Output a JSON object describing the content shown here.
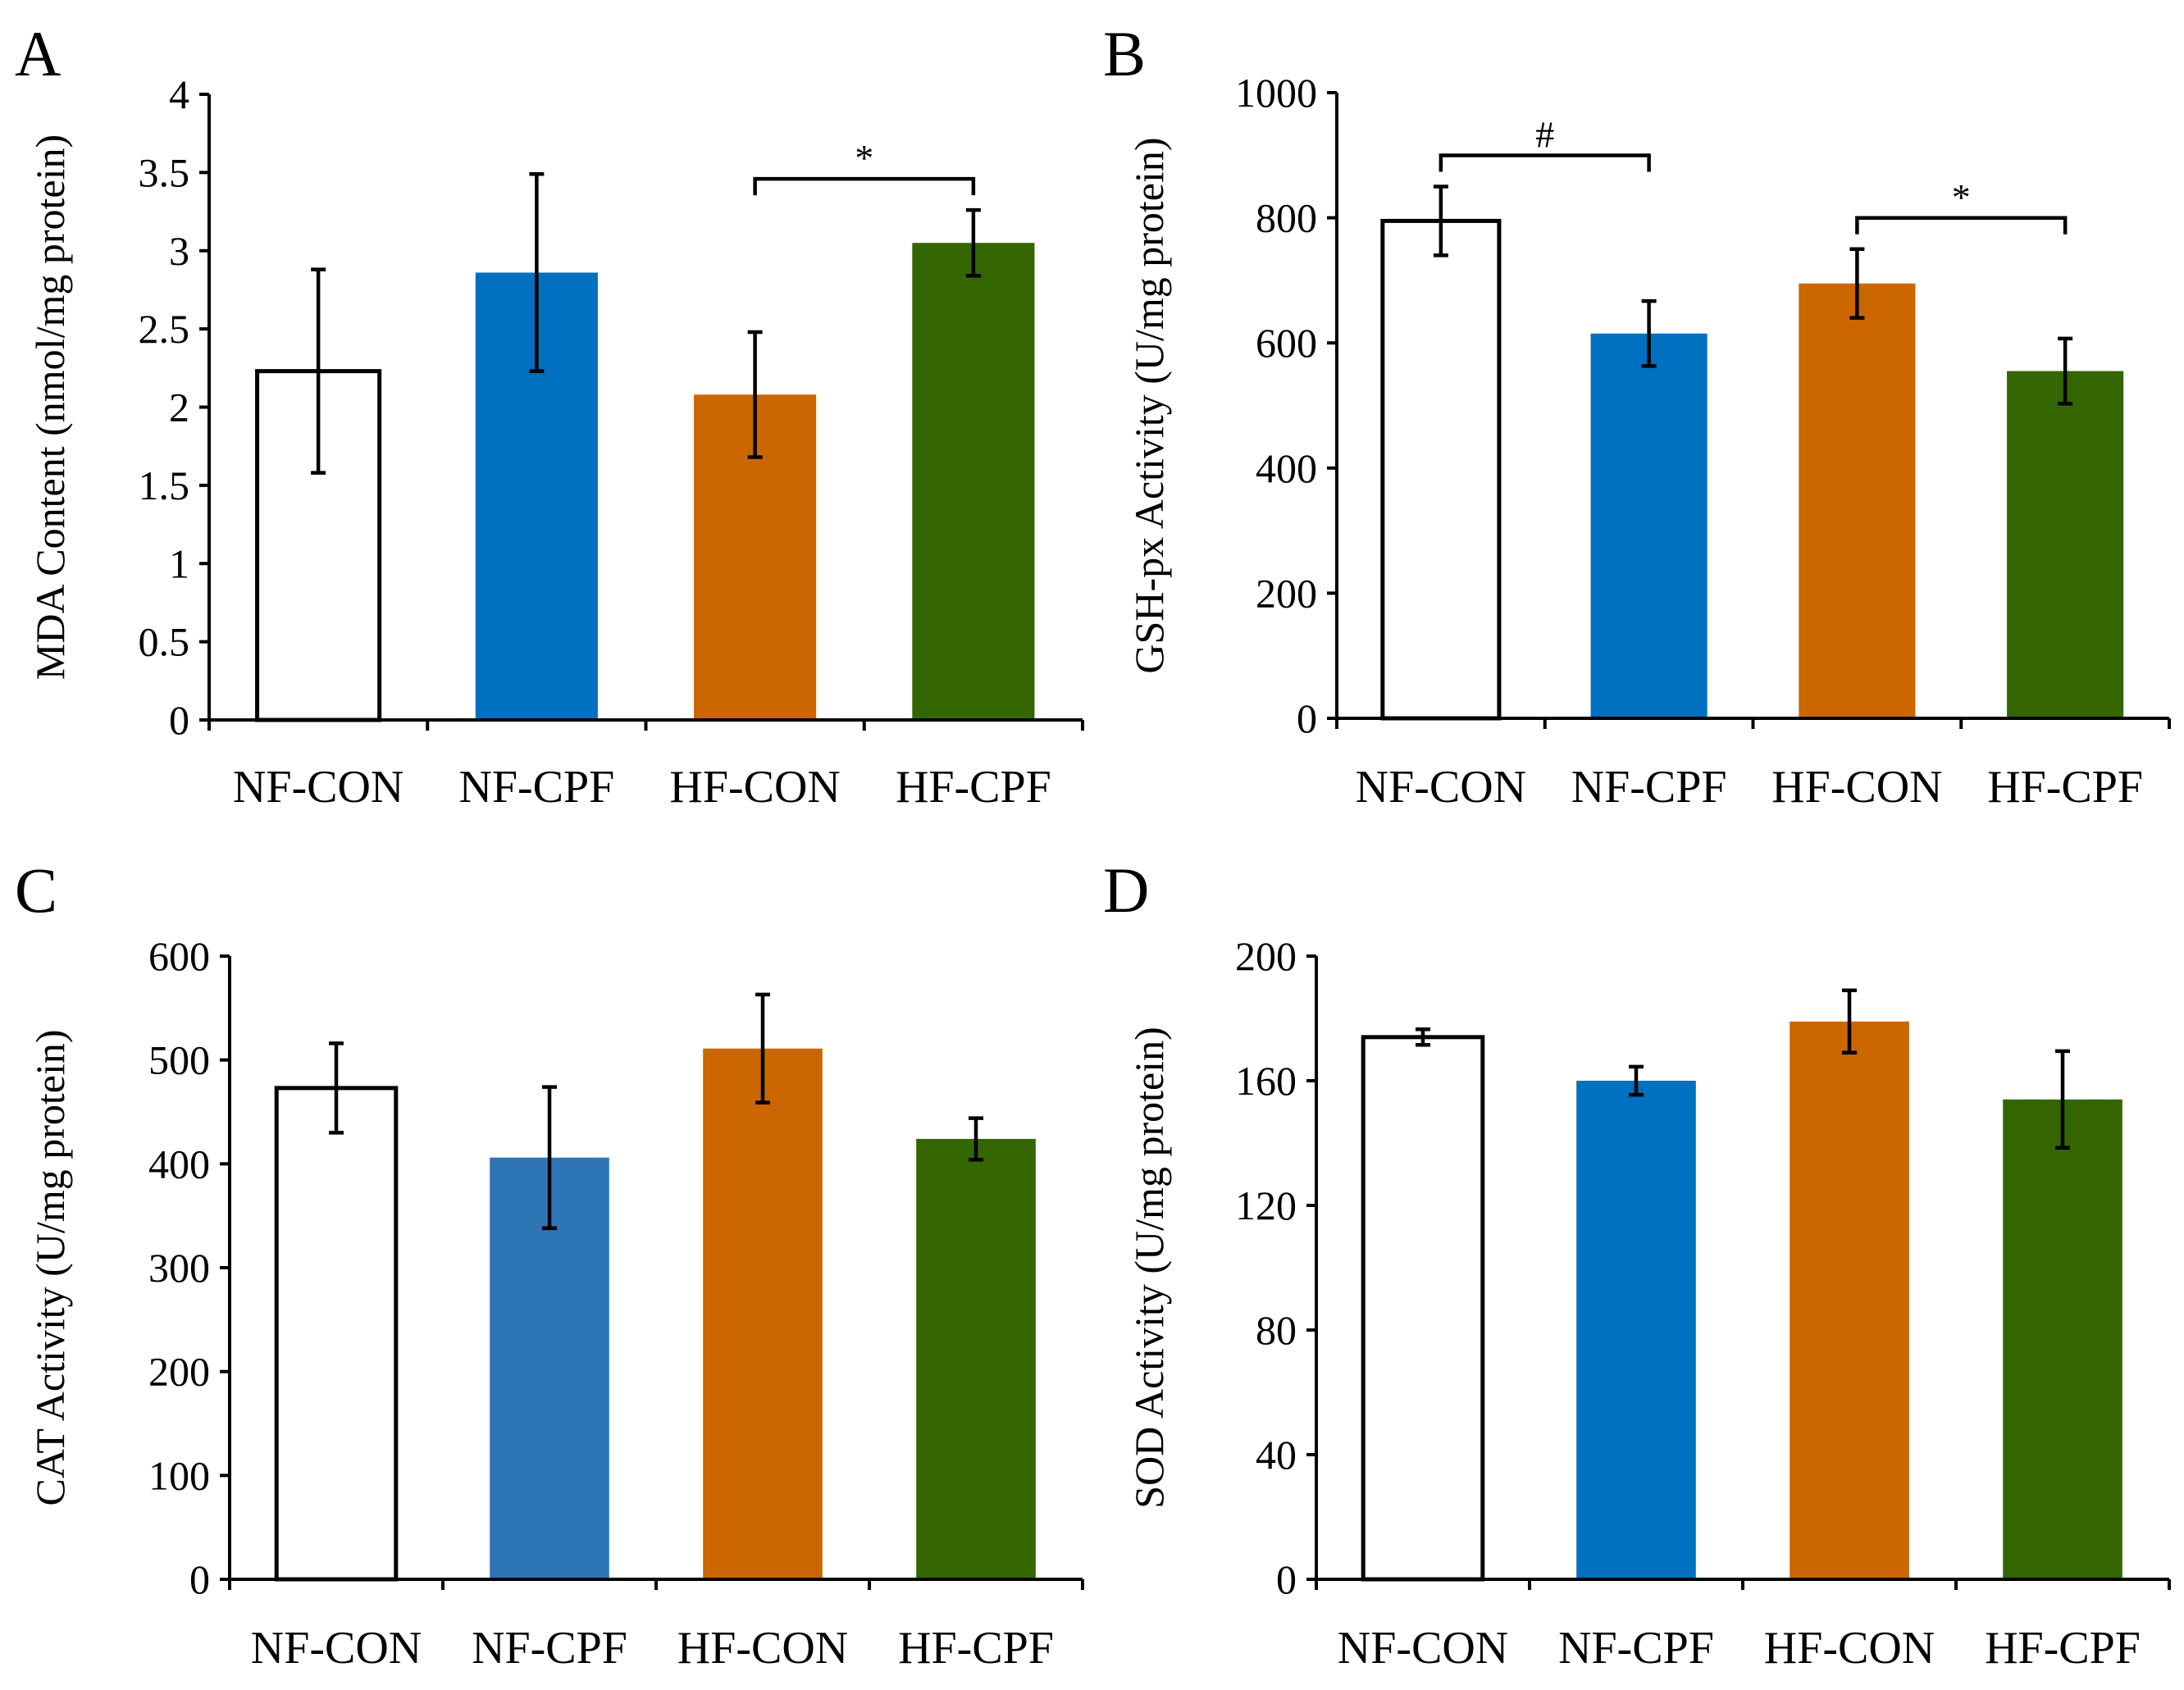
{
  "chart_data": [
    {
      "panel": "A",
      "type": "bar",
      "categories": [
        "NF-CON",
        "NF-CPF",
        "HF-CON",
        "HF-CPF"
      ],
      "values": [
        2.23,
        2.86,
        2.08,
        3.05
      ],
      "errors": [
        0.65,
        0.63,
        0.4,
        0.21
      ],
      "ylabel": "MDA Content (nmol/mg protein)",
      "ylim": [
        0,
        4
      ],
      "yticks": [
        "0",
        "0.5",
        "1",
        "1.5",
        "2",
        "2.5",
        "3",
        "3.5",
        "4"
      ],
      "significance": [
        {
          "from": 2,
          "to": 3,
          "label": "*"
        }
      ]
    },
    {
      "panel": "B",
      "type": "bar",
      "categories": [
        "NF-CON",
        "NF-CPF",
        "HF-CON",
        "HF-CPF"
      ],
      "values": [
        795,
        615,
        695,
        555
      ],
      "errors": [
        55,
        52,
        55,
        52
      ],
      "ylabel": "GSH-px Activity (U/mg protein)",
      "ylim": [
        0,
        1000
      ],
      "yticks": [
        "0",
        "200",
        "400",
        "600",
        "800",
        "1000"
      ],
      "significance": [
        {
          "from": 0,
          "to": 1,
          "label": "#"
        },
        {
          "from": 2,
          "to": 3,
          "label": "*"
        }
      ]
    },
    {
      "panel": "C",
      "type": "bar",
      "categories": [
        "NF-CON",
        "NF-CPF",
        "HF-CON",
        "HF-CPF"
      ],
      "values": [
        473,
        406,
        511,
        424
      ],
      "errors": [
        43,
        68,
        52,
        20
      ],
      "ylabel": "CAT Activity (U/mg protein)",
      "ylim": [
        0,
        600
      ],
      "yticks": [
        "0",
        "100",
        "200",
        "300",
        "400",
        "500",
        "600"
      ],
      "significance": []
    },
    {
      "panel": "D",
      "type": "bar",
      "categories": [
        "NF-CON",
        "NF-CPF",
        "HF-CON",
        "HF-CPF"
      ],
      "values": [
        174,
        160,
        179,
        154
      ],
      "errors": [
        2.5,
        4.5,
        10,
        15.5
      ],
      "ylabel": "SOD Activity (U/mg protein)",
      "ylim": [
        0,
        200
      ],
      "yticks": [
        "0",
        "40",
        "80",
        "120",
        "160",
        "200"
      ],
      "significance": []
    }
  ],
  "colors": {
    "NF-CON": "#ffffff",
    "NF-CPF": "#0070c0",
    "NF-CPF_panel_c": "#2e75b6",
    "HF-CON": "#cc6600",
    "HF-CPF": "#336600"
  }
}
